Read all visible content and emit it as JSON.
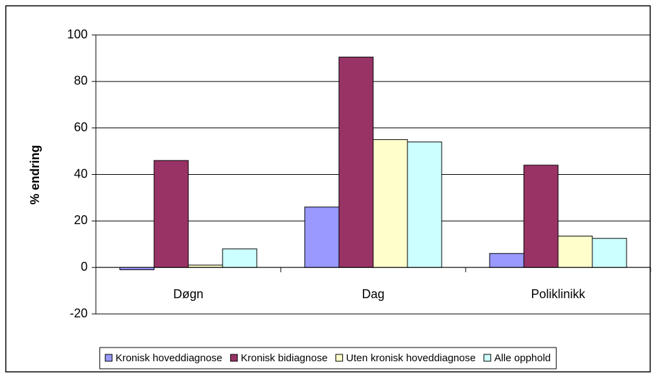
{
  "chart_data": {
    "type": "bar",
    "y_label": "% endring",
    "categories": [
      "Døgn",
      "Dag",
      "Poliklinikk"
    ],
    "series": [
      {
        "name": "Kronisk hoveddiagnose",
        "color": "#9999ff",
        "values": [
          -1,
          26,
          6
        ]
      },
      {
        "name": "Kronisk bidiagnose",
        "color": "#993366",
        "values": [
          46,
          90.5,
          44
        ]
      },
      {
        "name": "Uten kronisk hoveddiagnose",
        "color": "#ffffcc",
        "values": [
          1,
          55,
          13.5
        ]
      },
      {
        "name": "Alle opphold",
        "color": "#ccffff",
        "values": [
          8,
          54,
          12.5
        ]
      }
    ],
    "ylim": [
      -20,
      100
    ],
    "yticks": [
      -20,
      0,
      20,
      40,
      60,
      80,
      100
    ],
    "grid": true,
    "legend": "bottom"
  }
}
